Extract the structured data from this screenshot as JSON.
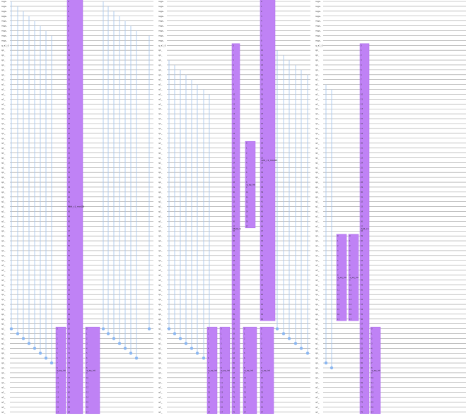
{
  "panels": [
    {
      "id": "panel-1",
      "wire_labels": [
        "regs..",
        "regs..",
        "regs..",
        "regs..",
        "regs..",
        "regs..",
        "regs..",
        "regs..",
        "regs..",
        "q_a1_0",
        "q1_",
        "q1_",
        "q1_",
        "q1_",
        "q1_",
        "q1_",
        "q1_",
        "q1_",
        "q1_",
        "q1_",
        "q1_",
        "q1_",
        "q1_",
        "q1_",
        "q1_",
        "q1_",
        "q1_",
        "q1_",
        "q1_",
        "q1_",
        "q1_",
        "q1_",
        "q1_",
        "q1_",
        "q1_",
        "q1_",
        "q1_",
        "q1_",
        "q1_",
        "q1_",
        "q1_",
        "q1_",
        "q1_",
        "q1_",
        "q1_",
        "q1_",
        "q1_",
        "q1_",
        "q1_",
        "q1_",
        "q1_",
        "q1_",
        "q1_",
        "q1_",
        "q1_",
        "q1_",
        "q1_",
        "q1_",
        "q1_",
        "q1_",
        "q1_",
        "q1_",
        "q1_",
        "q1_",
        "q1_",
        "q1_",
        "q1_",
        "q1_",
        "q1_",
        "q1_",
        "q1_",
        "q1_",
        "q1_",
        "q1_",
        "q1_",
        "q1_",
        "q1_",
        "q1_",
        "q1_",
        "q1_",
        "q1_",
        "q1_",
        "q1_",
        "q1_",
        "q1_"
      ],
      "gate_labels": [
        "q_sq_int",
        "Add_c1_mod28",
        "q_sq_int"
      ]
    },
    {
      "id": "panel-2",
      "wire_labels": [
        "regs..",
        "regs..",
        "regs..",
        "regs..",
        "regs..",
        "regs..",
        "regs..",
        "regs..",
        "regs..",
        "q_a1_0",
        "q1_",
        "q1_",
        "q1_",
        "q1_",
        "q1_",
        "q1_",
        "q1_",
        "q1_",
        "q1_",
        "q1_",
        "q1_",
        "q1_",
        "q1_",
        "q1_",
        "q1_",
        "q1_",
        "q1_",
        "q1_",
        "q1_",
        "q1_",
        "q1_",
        "q1_",
        "q1_",
        "q1_",
        "q1_",
        "q1_",
        "q1_",
        "q1_",
        "q1_",
        "q1_",
        "q1_",
        "q1_",
        "q1_",
        "q1_",
        "q1_",
        "q1_",
        "q1_",
        "q1_",
        "q1_",
        "q1_",
        "q1_",
        "q1_",
        "q1_",
        "q1_",
        "q1_",
        "q1_",
        "q1_",
        "q1_",
        "q1_",
        "q1_",
        "q1_",
        "q1_",
        "q1_",
        "q1_",
        "q1_",
        "q1_",
        "q1_",
        "q1_",
        "q1_",
        "q1_",
        "q1_",
        "q1_",
        "q1_",
        "q1_",
        "q1_",
        "q1_",
        "q1_",
        "q1_",
        "q1_",
        "q1_",
        "q1_",
        "q1_",
        "q1_",
        "q1_",
        "q1_"
      ],
      "gate_labels": [
        "q_sq_int",
        "q_sq_int",
        "Mult_c1",
        "q_sq_int",
        "Add_c1_mod28",
        "q_sq_int",
        "q_sq_int"
      ]
    },
    {
      "id": "panel-3",
      "wire_labels": [
        "regs..",
        "regs..",
        "regs..",
        "regs..",
        "regs..",
        "regs..",
        "regs..",
        "regs..",
        "regs..",
        "q_a1_0",
        "q1_",
        "q1_",
        "q1_",
        "q1_",
        "q1_",
        "q1_",
        "q1_",
        "q1_",
        "q1_",
        "q1_",
        "q1_",
        "q1_",
        "q1_",
        "q1_",
        "q1_",
        "q1_",
        "q1_",
        "q1_",
        "q1_",
        "q1_",
        "q1_",
        "q1_",
        "q1_",
        "q1_",
        "q1_",
        "q1_",
        "q1_",
        "q1_",
        "q1_",
        "q1_",
        "q1_",
        "q1_",
        "q1_",
        "q1_",
        "q1_",
        "q1_",
        "q1_",
        "q1_",
        "q1_",
        "q1_",
        "q1_",
        "q1_",
        "q1_",
        "q1_",
        "q1_",
        "q1_",
        "q1_",
        "q1_",
        "q1_",
        "q1_",
        "q1_",
        "q1_",
        "q1_",
        "q1_",
        "q1_",
        "q1_",
        "q1_",
        "q1_",
        "q1_",
        "q1_",
        "q1_",
        "q1_",
        "q1_",
        "q1_",
        "q1_",
        "q1_",
        "q1_",
        "q1_",
        "q1_",
        "q1_",
        "q1_",
        "q1_",
        "q1_",
        "q1_",
        "q1_"
      ],
      "gate_labels": [
        "q_sq_int",
        "q_sq_int",
        "Add_c1",
        "q_sq_int"
      ]
    }
  ],
  "colors": {
    "gate_fill": "#bf82f5",
    "control_line": "#a9c7ee",
    "control_dot": "#8ab6f0",
    "wire": "#9a9a9a"
  }
}
